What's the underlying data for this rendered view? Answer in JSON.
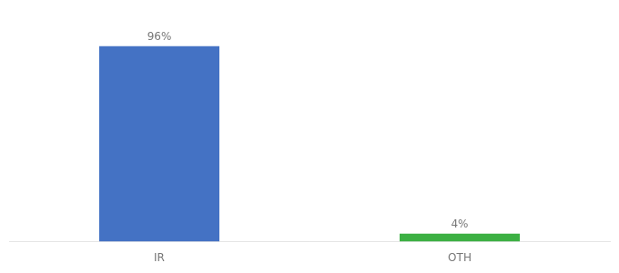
{
  "chart_data": {
    "type": "bar",
    "categories": [
      "IR",
      "OTH"
    ],
    "values": [
      96,
      4
    ],
    "value_labels": [
      "96%",
      "4%"
    ],
    "data_labels": true,
    "colors": [
      "#4472c4",
      "#3cb043"
    ],
    "ylim": [
      0,
      108
    ],
    "grid": false,
    "tick_labels": "x"
  }
}
